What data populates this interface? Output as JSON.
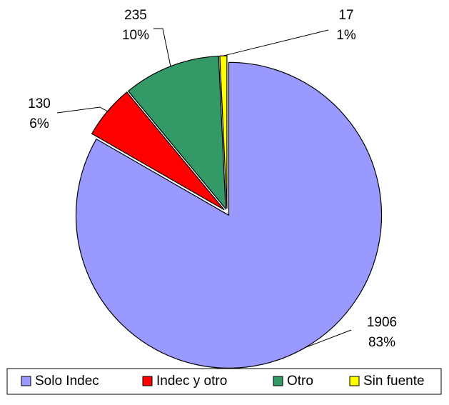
{
  "chart_data": {
    "type": "pie",
    "categories": [
      "Solo Indec",
      "Indec y otro",
      "Otro",
      "Sin fuente"
    ],
    "values": [
      1906,
      130,
      235,
      17
    ],
    "percent_labels": [
      "83%",
      "6%",
      "10%",
      "1%"
    ],
    "colors": [
      "#9999ff",
      "#ff0000",
      "#339966",
      "#ffff00"
    ],
    "legend": "bottom"
  }
}
